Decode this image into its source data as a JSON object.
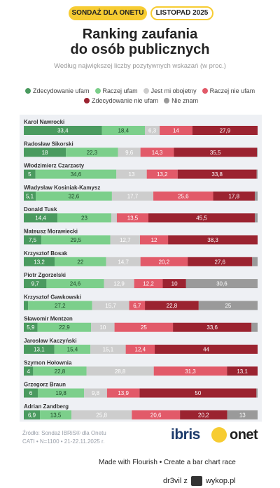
{
  "header": {
    "badge_left": "SONDAŻ DLA ONETU",
    "badge_right": "LISTOPAD 2025",
    "title_line1": "Ranking zaufania",
    "title_line2": "do osób publicznych",
    "subtitle": "Według największej liczby pozytywnych wskazań (w proc.)"
  },
  "legend": [
    {
      "label": "Zdecydowanie ufam",
      "color": "#4a9a5f"
    },
    {
      "label": "Raczej ufam",
      "color": "#7ccf8b"
    },
    {
      "label": "Jest mi obojetny",
      "color": "#cdcdcd"
    },
    {
      "label": "Raczej nie ufam",
      "color": "#e25a69"
    },
    {
      "label": "Zdecydowanie nie ufam",
      "color": "#9b2330"
    },
    {
      "label": "Nie znam",
      "color": "#9a9a9a"
    }
  ],
  "chart_data": {
    "type": "bar",
    "orientation": "horizontal-stacked",
    "title": "Ranking zaufania do osób publicznych",
    "subtitle": "Według największej liczby pozytywnych wskazań (w proc.)",
    "categories": [
      "Karol Nawrocki",
      "Radosław Sikorski",
      "Włodzimierz Czarzasty",
      "Władysław Kosiniak-Kamysz",
      "Donald Tusk",
      "Mateusz Morawiecki",
      "Krzysztof Bosak",
      "Piotr Zgorzelski",
      "Krzysztof Gawkowski",
      "Sławomir Mentzen",
      "Jarosław Kaczyński",
      "Szymon Hołownia",
      "Grzegorz Braun",
      "Adrian Zandberg"
    ],
    "series": [
      {
        "name": "Zdecydowanie ufam",
        "color": "#4a9a5f",
        "label_color": "#ffffff",
        "values": [
          33.4,
          18,
          5,
          5.1,
          14.4,
          7.5,
          13.2,
          9.7,
          1.8,
          5.9,
          13.1,
          4,
          6,
          6.9
        ]
      },
      {
        "name": "Raczej ufam",
        "color": "#7ccf8b",
        "label_color": "#1f4a2a",
        "values": [
          18.4,
          22.3,
          34.6,
          32.6,
          23,
          29.5,
          22,
          24.6,
          27.2,
          22.9,
          15.4,
          22.8,
          19.8,
          13.5
        ]
      },
      {
        "name": "Jest mi obojetny",
        "color": "#cdcdcd",
        "label_color": "#ffffff",
        "values": [
          6.3,
          9.6,
          13,
          17.7,
          2.4,
          12.7,
          14.7,
          12.9,
          15.7,
          10,
          15.1,
          28.8,
          9.8,
          25.8
        ]
      },
      {
        "name": "Raczej nie ufam",
        "color": "#e25a69",
        "label_color": "#ffffff",
        "values": [
          14,
          14.3,
          13.2,
          25.6,
          13.5,
          12,
          20.2,
          12.2,
          6.7,
          25,
          12.4,
          31.3,
          13.9,
          20.6
        ]
      },
      {
        "name": "Zdecydowanie nie ufam",
        "color": "#9b2330",
        "label_color": "#ffffff",
        "values": [
          27.9,
          35.5,
          33.8,
          17.8,
          45.5,
          38.3,
          27.6,
          10,
          22.8,
          33.6,
          44,
          13.1,
          50,
          20.2
        ]
      },
      {
        "name": "Nie znam",
        "color": "#9a9a9a",
        "label_color": "#ffffff",
        "values": [
          0,
          0.3,
          0.4,
          1.2,
          1.2,
          0,
          2.3,
          30.6,
          25,
          2.6,
          0,
          0,
          0.5,
          13
        ]
      }
    ],
    "hidden_labels": [
      [
        false,
        false,
        false,
        false,
        false,
        true
      ],
      [
        false,
        false,
        false,
        false,
        false,
        true
      ],
      [
        false,
        false,
        false,
        false,
        false,
        true
      ],
      [
        false,
        false,
        false,
        false,
        false,
        true
      ],
      [
        false,
        false,
        true,
        false,
        false,
        true
      ],
      [
        false,
        false,
        false,
        false,
        false,
        true
      ],
      [
        false,
        false,
        false,
        false,
        false,
        true
      ],
      [
        false,
        false,
        false,
        false,
        false,
        false
      ],
      [
        true,
        false,
        false,
        false,
        false,
        false
      ],
      [
        false,
        false,
        false,
        false,
        false,
        true
      ],
      [
        false,
        false,
        false,
        false,
        false,
        true
      ],
      [
        false,
        false,
        false,
        false,
        false,
        true
      ],
      [
        false,
        false,
        false,
        false,
        false,
        true
      ],
      [
        false,
        false,
        false,
        false,
        false,
        false
      ]
    ],
    "xlim": [
      0,
      100
    ],
    "unit": "%"
  },
  "footer": {
    "source_line1": "Źródło: Sondaż IBRiS® dla Onetu",
    "source_line2": "CATI • N=1100 • 21-22.11.2025 r.",
    "ibris_logo": "ibris",
    "onet_logo": "onet",
    "flourish": "Made with Flourish • Create a bar chart race",
    "watermark": "dr3vil z",
    "watermark_site": "wykop.pl"
  }
}
